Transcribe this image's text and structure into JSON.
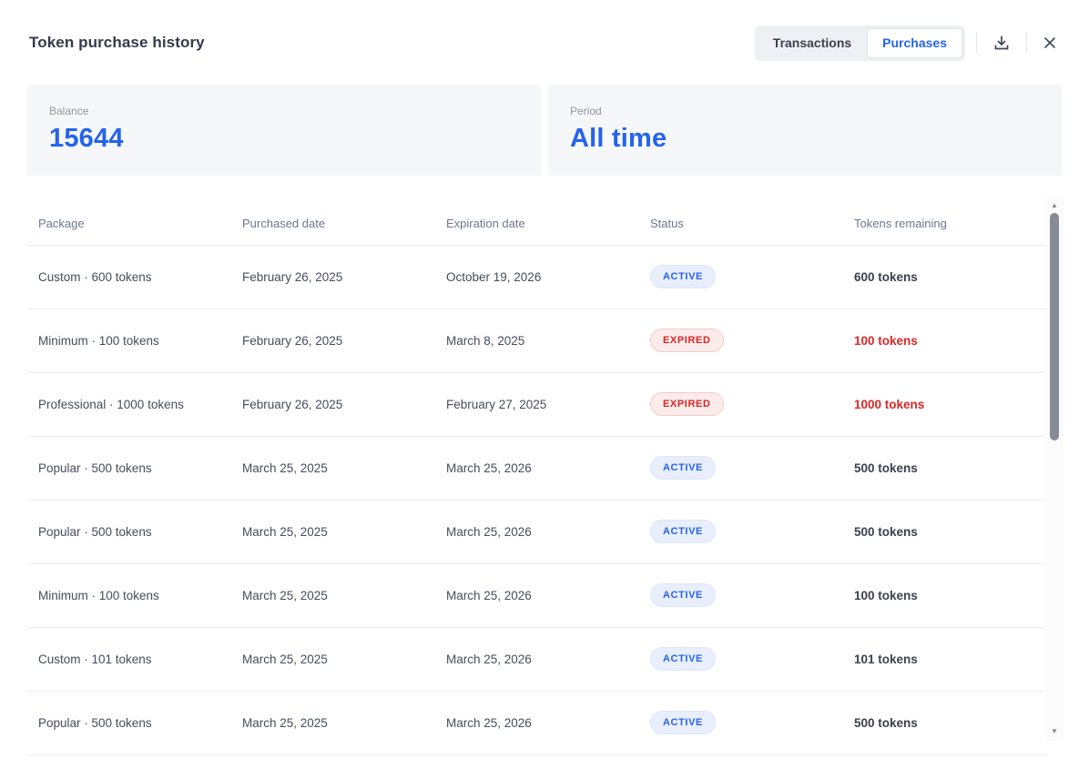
{
  "header": {
    "title": "Token purchase history",
    "tabs": [
      {
        "label": "Transactions",
        "active": false
      },
      {
        "label": "Purchases",
        "active": true
      }
    ],
    "icons": [
      "download-icon",
      "close-icon"
    ]
  },
  "summary": {
    "balance": {
      "label": "Balance",
      "value": "15644"
    },
    "period": {
      "label": "Period",
      "value": "All time"
    }
  },
  "colors": {
    "accent_blue": "#2563eb",
    "expired_red": "#dc2626",
    "active_badge_bg": "#e8eefb",
    "expired_badge_bg": "#fcebeb",
    "card_bg": "#f6f7f9"
  },
  "table": {
    "columns": [
      "Package",
      "Purchased date",
      "Expiration date",
      "Status",
      "Tokens remaining"
    ],
    "rows": [
      {
        "package": "Custom · 600 tokens",
        "purchased": "February 26, 2025",
        "expiration": "October 19, 2026",
        "status": "ACTIVE",
        "status_type": "active",
        "tokens": "600 tokens"
      },
      {
        "package": "Minimum · 100 tokens",
        "purchased": "February 26, 2025",
        "expiration": "March 8, 2025",
        "status": "EXPIRED",
        "status_type": "expired",
        "tokens": "100 tokens"
      },
      {
        "package": "Professional · 1000 tokens",
        "purchased": "February 26, 2025",
        "expiration": "February 27, 2025",
        "status": "EXPIRED",
        "status_type": "expired",
        "tokens": "1000 tokens"
      },
      {
        "package": "Popular · 500 tokens",
        "purchased": "March 25, 2025",
        "expiration": "March 25, 2026",
        "status": "ACTIVE",
        "status_type": "active",
        "tokens": "500 tokens"
      },
      {
        "package": "Popular · 500 tokens",
        "purchased": "March 25, 2025",
        "expiration": "March 25, 2026",
        "status": "ACTIVE",
        "status_type": "active",
        "tokens": "500 tokens"
      },
      {
        "package": "Minimum · 100 tokens",
        "purchased": "March 25, 2025",
        "expiration": "March 25, 2026",
        "status": "ACTIVE",
        "status_type": "active",
        "tokens": "100 tokens"
      },
      {
        "package": "Custom · 101 tokens",
        "purchased": "March 25, 2025",
        "expiration": "March 25, 2026",
        "status": "ACTIVE",
        "status_type": "active",
        "tokens": "101 tokens"
      },
      {
        "package": "Popular · 500 tokens",
        "purchased": "March 25, 2025",
        "expiration": "March 25, 2026",
        "status": "ACTIVE",
        "status_type": "active",
        "tokens": "500 tokens"
      }
    ]
  }
}
